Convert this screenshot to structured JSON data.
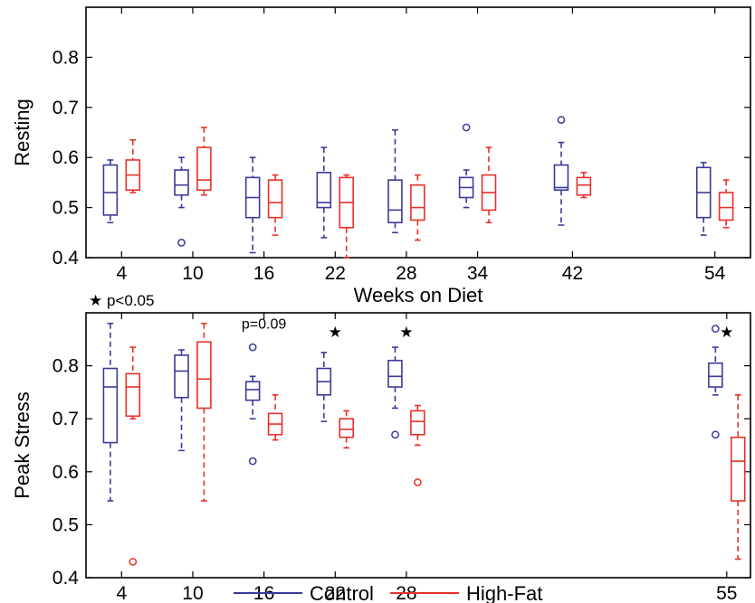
{
  "colors": {
    "control": "#3a3a9a",
    "high_fat": "#e8302a",
    "axis": "#000000"
  },
  "legend": {
    "position": "bottom-center",
    "items": [
      {
        "label": "Control",
        "color": "#3a3a9a"
      },
      {
        "label": "High-Fat",
        "color": "#e8302a"
      }
    ]
  },
  "chart_data": [
    {
      "type": "box",
      "ylabel": "Resting",
      "xlabel": "Weeks on Diet",
      "ylim": [
        0.4,
        0.9
      ],
      "yticks": [
        "0.4",
        "0.5",
        "0.6",
        "0.7",
        "0.8"
      ],
      "ytick_values": [
        0.4,
        0.5,
        0.6,
        0.7,
        0.8
      ],
      "xlim": [
        1,
        57
      ],
      "grid": false,
      "categories": [
        "4",
        "10",
        "16",
        "22",
        "28",
        "34",
        "42",
        "54"
      ],
      "x": [
        4,
        10,
        16,
        22,
        28,
        34,
        42,
        54
      ],
      "series": [
        {
          "name": "Control",
          "boxes": [
            {
              "x": 4,
              "whisker_low": 0.47,
              "q1": 0.485,
              "median": 0.53,
              "q3": 0.585,
              "whisker_high": 0.595,
              "outliers": []
            },
            {
              "x": 10,
              "whisker_low": 0.5,
              "q1": 0.525,
              "median": 0.545,
              "q3": 0.575,
              "whisker_high": 0.6,
              "outliers": [
                0.43
              ]
            },
            {
              "x": 16,
              "whisker_low": 0.41,
              "q1": 0.48,
              "median": 0.52,
              "q3": 0.56,
              "whisker_high": 0.6,
              "outliers": []
            },
            {
              "x": 22,
              "whisker_low": 0.44,
              "q1": 0.5,
              "median": 0.51,
              "q3": 0.57,
              "whisker_high": 0.62,
              "outliers": []
            },
            {
              "x": 28,
              "whisker_low": 0.45,
              "q1": 0.47,
              "median": 0.495,
              "q3": 0.555,
              "whisker_high": 0.655,
              "outliers": []
            },
            {
              "x": 34,
              "whisker_low": 0.5,
              "q1": 0.52,
              "median": 0.54,
              "q3": 0.56,
              "whisker_high": 0.575,
              "outliers": [
                0.66
              ]
            },
            {
              "x": 42,
              "whisker_low": 0.465,
              "q1": 0.535,
              "median": 0.54,
              "q3": 0.585,
              "whisker_high": 0.63,
              "outliers": [
                0.675
              ]
            },
            {
              "x": 54,
              "whisker_low": 0.445,
              "q1": 0.48,
              "median": 0.53,
              "q3": 0.58,
              "whisker_high": 0.59,
              "outliers": []
            }
          ]
        },
        {
          "name": "High-Fat",
          "boxes": [
            {
              "x": 4,
              "whisker_low": 0.53,
              "q1": 0.535,
              "median": 0.565,
              "q3": 0.595,
              "whisker_high": 0.635,
              "outliers": []
            },
            {
              "x": 10,
              "whisker_low": 0.525,
              "q1": 0.535,
              "median": 0.555,
              "q3": 0.62,
              "whisker_high": 0.66,
              "outliers": []
            },
            {
              "x": 16,
              "whisker_low": 0.445,
              "q1": 0.48,
              "median": 0.51,
              "q3": 0.555,
              "whisker_high": 0.565,
              "outliers": []
            },
            {
              "x": 22,
              "whisker_low": 0.4,
              "q1": 0.46,
              "median": 0.51,
              "q3": 0.56,
              "whisker_high": 0.565,
              "outliers": []
            },
            {
              "x": 28,
              "whisker_low": 0.435,
              "q1": 0.475,
              "median": 0.5,
              "q3": 0.545,
              "whisker_high": 0.565,
              "outliers": []
            },
            {
              "x": 34,
              "whisker_low": 0.47,
              "q1": 0.495,
              "median": 0.53,
              "q3": 0.565,
              "whisker_high": 0.62,
              "outliers": []
            },
            {
              "x": 42,
              "whisker_low": 0.52,
              "q1": 0.525,
              "median": 0.545,
              "q3": 0.56,
              "whisker_high": 0.57,
              "outliers": []
            },
            {
              "x": 54,
              "whisker_low": 0.46,
              "q1": 0.475,
              "median": 0.5,
              "q3": 0.53,
              "whisker_high": 0.555,
              "outliers": []
            }
          ]
        }
      ]
    },
    {
      "type": "box",
      "ylabel": "Peak Stress",
      "ylim": [
        0.4,
        0.9
      ],
      "yticks": [
        "0.4",
        "0.5",
        "0.6",
        "0.7",
        "0.8"
      ],
      "ytick_values": [
        0.4,
        0.5,
        0.6,
        0.7,
        0.8
      ],
      "xlim": [
        1,
        57
      ],
      "grid": false,
      "categories": [
        "4",
        "10",
        "16",
        "22",
        "28",
        "55"
      ],
      "x": [
        4,
        10,
        16,
        22,
        28,
        55
      ],
      "annotations": [
        {
          "text": "★ p<0.05",
          "position": "above-left"
        },
        {
          "text": "p=0.09",
          "x": 16,
          "y": 0.88
        }
      ],
      "significance_x": [
        22,
        28,
        55
      ],
      "significance_symbol": "★",
      "series": [
        {
          "name": "Control",
          "boxes": [
            {
              "x": 4,
              "whisker_low": 0.545,
              "q1": 0.655,
              "median": 0.76,
              "q3": 0.795,
              "whisker_high": 0.88,
              "outliers": []
            },
            {
              "x": 10,
              "whisker_low": 0.64,
              "q1": 0.74,
              "median": 0.79,
              "q3": 0.82,
              "whisker_high": 0.83,
              "outliers": []
            },
            {
              "x": 16,
              "whisker_low": 0.7,
              "q1": 0.735,
              "median": 0.755,
              "q3": 0.77,
              "whisker_high": 0.78,
              "outliers": [
                0.835,
                0.62
              ]
            },
            {
              "x": 22,
              "whisker_low": 0.695,
              "q1": 0.745,
              "median": 0.77,
              "q3": 0.795,
              "whisker_high": 0.825,
              "outliers": []
            },
            {
              "x": 28,
              "whisker_low": 0.72,
              "q1": 0.76,
              "median": 0.78,
              "q3": 0.81,
              "whisker_high": 0.835,
              "outliers": [
                0.67
              ]
            },
            {
              "x": 55,
              "whisker_low": 0.745,
              "q1": 0.76,
              "median": 0.78,
              "q3": 0.805,
              "whisker_high": 0.835,
              "outliers": [
                0.87,
                0.67
              ]
            }
          ]
        },
        {
          "name": "High-Fat",
          "boxes": [
            {
              "x": 4,
              "whisker_low": 0.7,
              "q1": 0.705,
              "median": 0.76,
              "q3": 0.785,
              "whisker_high": 0.835,
              "outliers": [
                0.43
              ]
            },
            {
              "x": 10,
              "whisker_low": 0.545,
              "q1": 0.72,
              "median": 0.775,
              "q3": 0.845,
              "whisker_high": 0.88,
              "outliers": []
            },
            {
              "x": 16,
              "whisker_low": 0.66,
              "q1": 0.67,
              "median": 0.69,
              "q3": 0.71,
              "whisker_high": 0.745,
              "outliers": []
            },
            {
              "x": 22,
              "whisker_low": 0.645,
              "q1": 0.665,
              "median": 0.68,
              "q3": 0.7,
              "whisker_high": 0.715,
              "outliers": []
            },
            {
              "x": 28,
              "whisker_low": 0.65,
              "q1": 0.67,
              "median": 0.695,
              "q3": 0.715,
              "whisker_high": 0.725,
              "outliers": [
                0.58
              ]
            },
            {
              "x": 55,
              "whisker_low": 0.435,
              "q1": 0.545,
              "median": 0.62,
              "q3": 0.665,
              "whisker_high": 0.745,
              "outliers": []
            }
          ]
        }
      ]
    }
  ]
}
